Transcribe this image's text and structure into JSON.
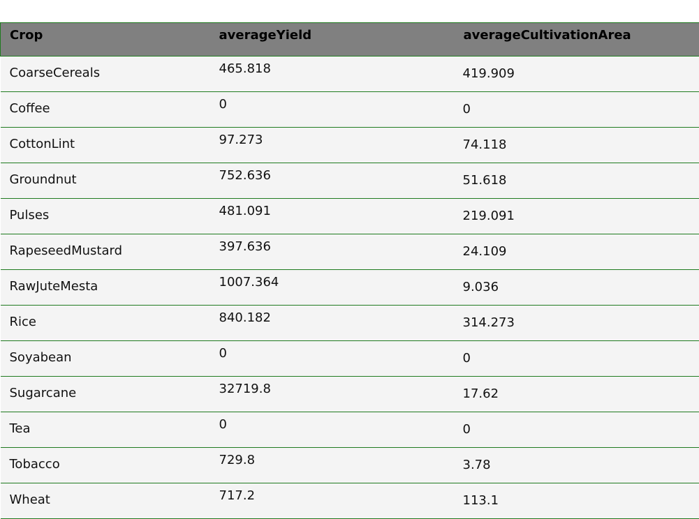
{
  "table": {
    "headers": [
      "Crop",
      "averageYield",
      "averageCultivationArea"
    ],
    "rows": [
      {
        "crop": "CoarseCereals",
        "averageYield": "465.818",
        "averageCultivationArea": "419.909"
      },
      {
        "crop": "Coffee",
        "averageYield": "0",
        "averageCultivationArea": "0"
      },
      {
        "crop": "CottonLint",
        "averageYield": "97.273",
        "averageCultivationArea": "74.118"
      },
      {
        "crop": "Groundnut",
        "averageYield": "752.636",
        "averageCultivationArea": "51.618"
      },
      {
        "crop": "Pulses",
        "averageYield": "481.091",
        "averageCultivationArea": "219.091"
      },
      {
        "crop": "RapeseedMustard",
        "averageYield": "397.636",
        "averageCultivationArea": "24.109"
      },
      {
        "crop": "RawJuteMesta",
        "averageYield": "1007.364",
        "averageCultivationArea": "9.036"
      },
      {
        "crop": "Rice",
        "averageYield": "840.182",
        "averageCultivationArea": "314.273"
      },
      {
        "crop": "Soyabean",
        "averageYield": "0",
        "averageCultivationArea": "0"
      },
      {
        "crop": "Sugarcane",
        "averageYield": "32719.8",
        "averageCultivationArea": "17.62"
      },
      {
        "crop": "Tea",
        "averageYield": "0",
        "averageCultivationArea": "0"
      },
      {
        "crop": "Tobacco",
        "averageYield": "729.8",
        "averageCultivationArea": "3.78"
      },
      {
        "crop": "Wheat",
        "averageYield": "717.2",
        "averageCultivationArea": "113.1"
      }
    ]
  },
  "colors": {
    "header_bg": "#808080",
    "row_bg": "#f4f4f4",
    "border": "#1f7a1f"
  }
}
